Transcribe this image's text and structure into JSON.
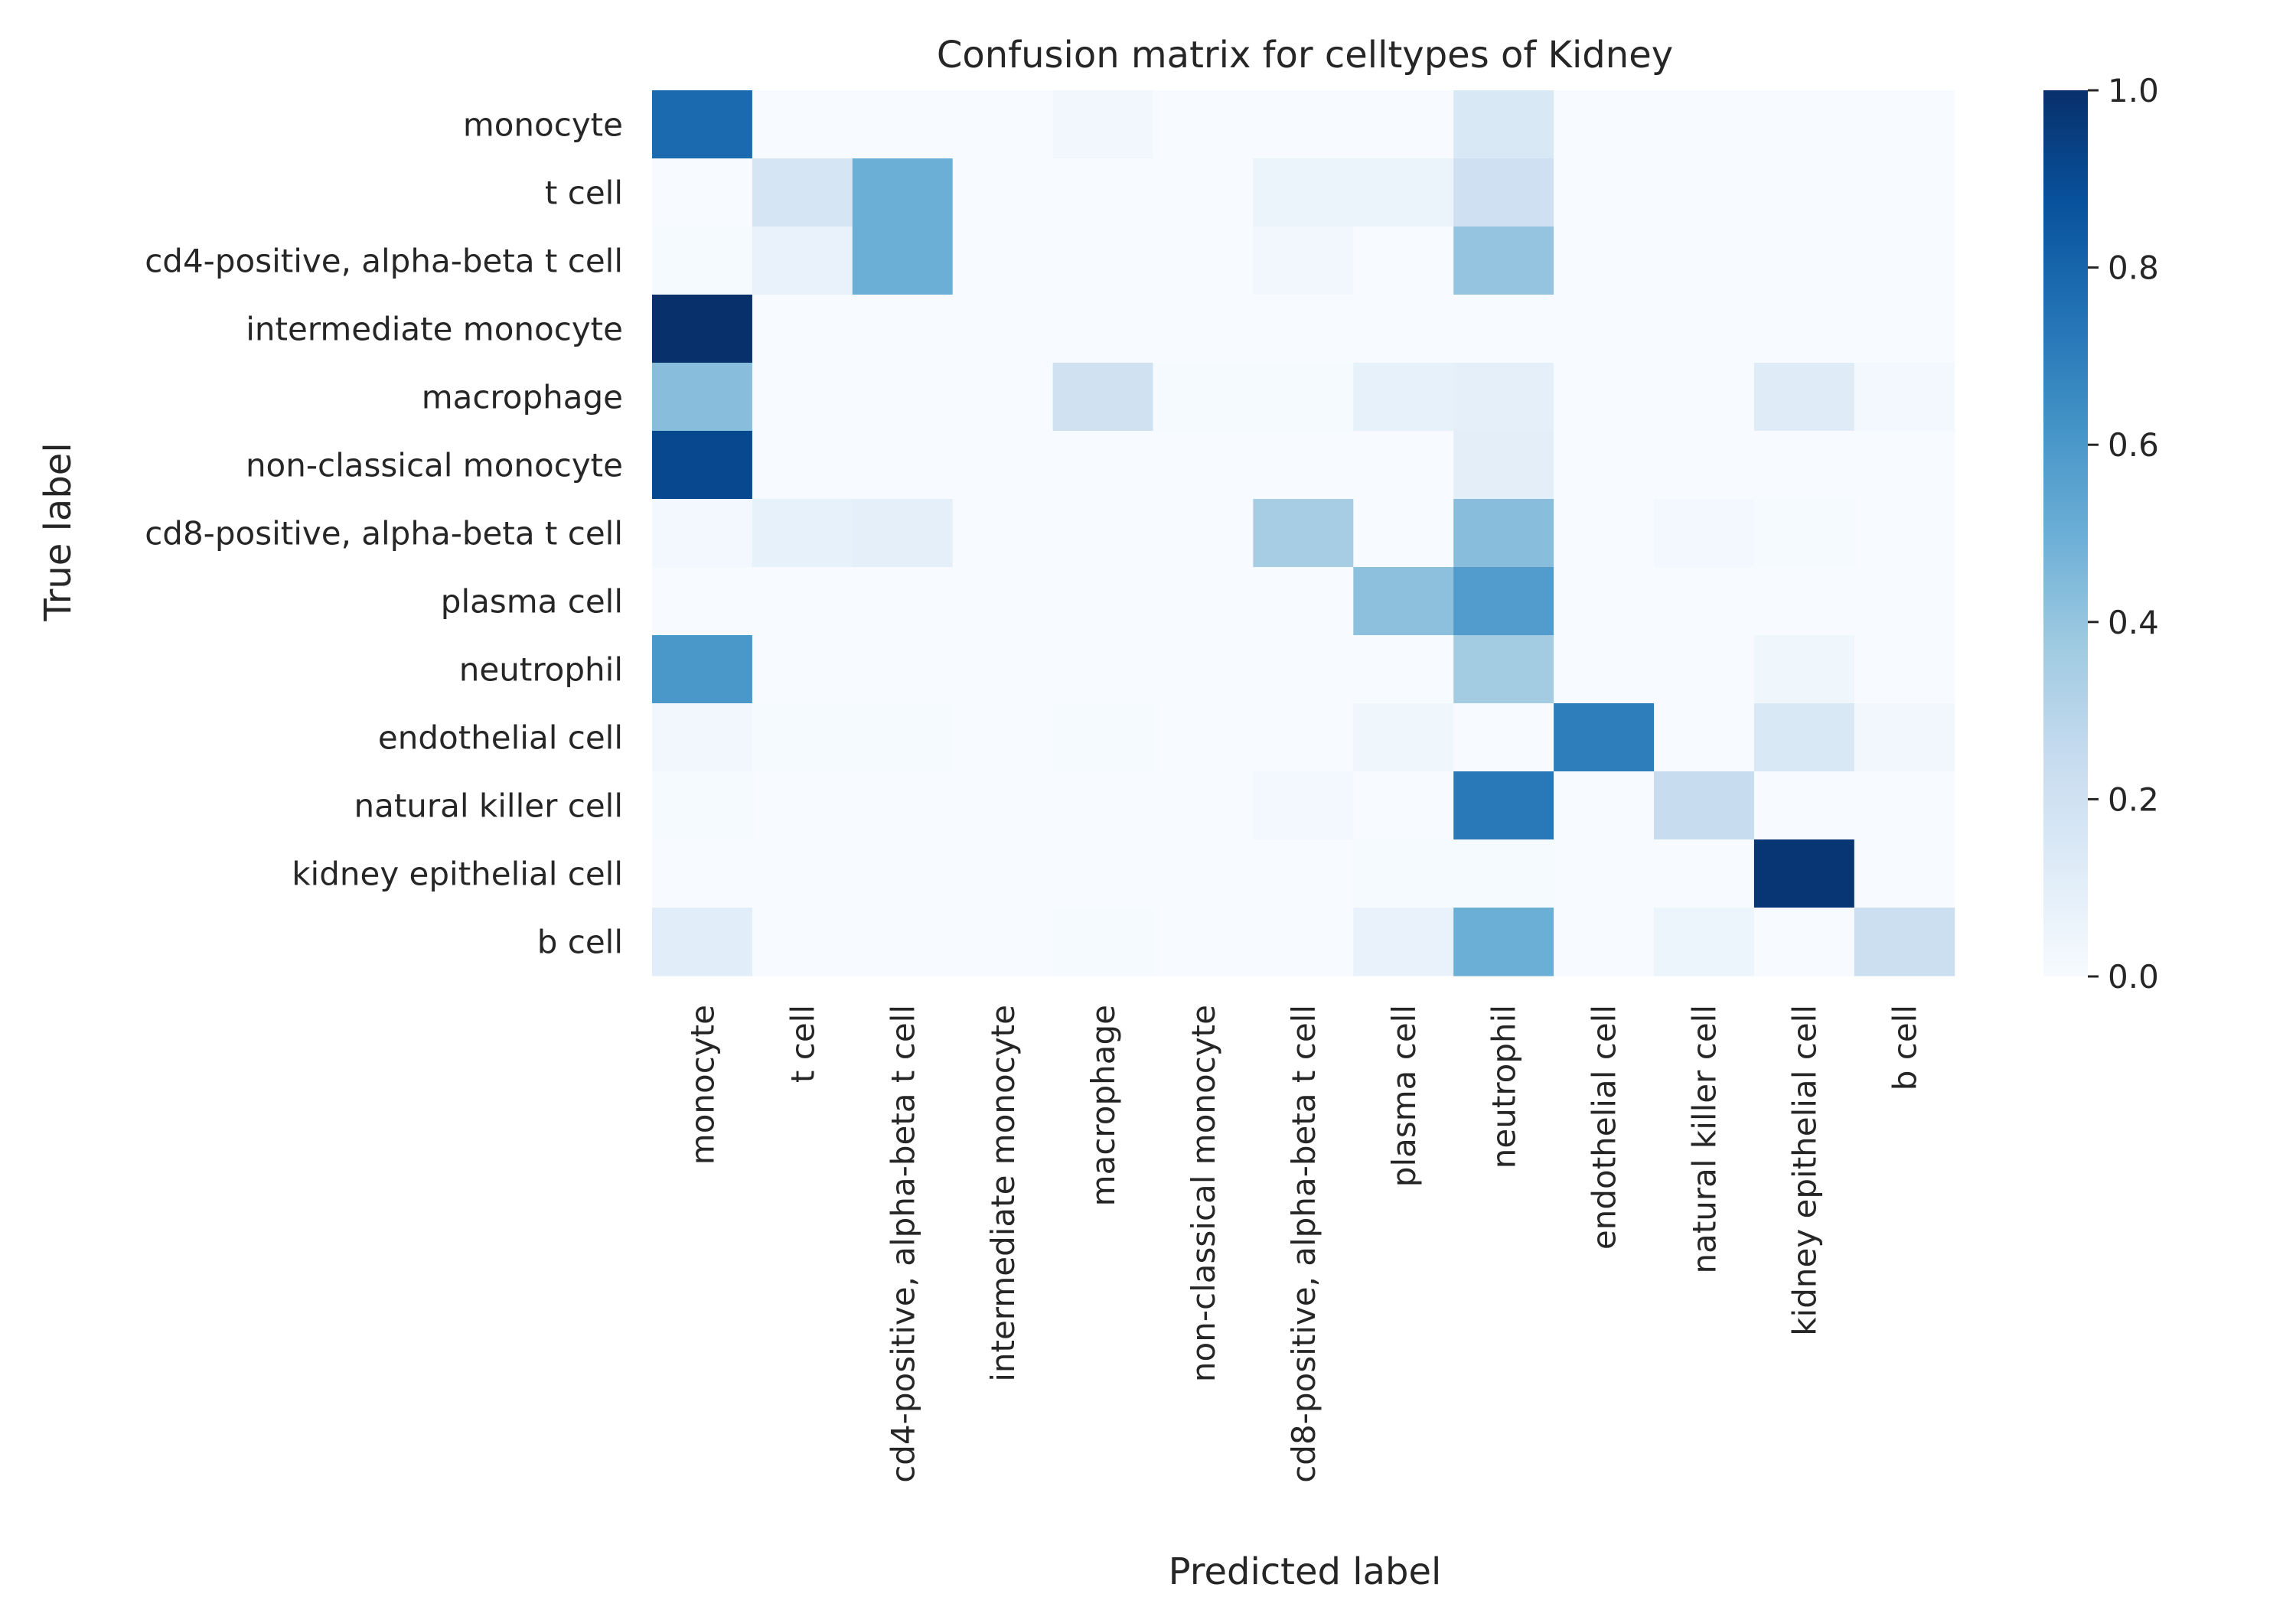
{
  "chart_data": {
    "type": "heatmap",
    "title": "Confusion matrix for celltypes of Kidney",
    "xlabel": "Predicted label",
    "ylabel": "True label",
    "row_labels": [
      "monocyte",
      "t cell",
      "cd4-positive, alpha-beta t cell",
      "intermediate monocyte",
      "macrophage",
      "non-classical monocyte",
      "cd8-positive, alpha-beta t cell",
      "plasma cell",
      "neutrophil",
      "endothelial cell",
      "natural killer cell",
      "kidney epithelial cell",
      "b cell"
    ],
    "col_labels": [
      "monocyte",
      "t cell",
      "cd4-positive, alpha-beta t cell",
      "intermediate monocyte",
      "macrophage",
      "non-classical monocyte",
      "cd8-positive, alpha-beta t cell",
      "plasma cell",
      "neutrophil",
      "endothelial cell",
      "natural killer cell",
      "kidney epithelial cell",
      "b cell"
    ],
    "values": [
      [
        0.78,
        0,
        0,
        0,
        0.03,
        0,
        0,
        0,
        0.15,
        0,
        0,
        0,
        0
      ],
      [
        0,
        0.17,
        0.5,
        0,
        0,
        0,
        0.06,
        0.06,
        0.21,
        0,
        0,
        0,
        0
      ],
      [
        0.01,
        0.07,
        0.5,
        0,
        0,
        0,
        0.03,
        0,
        0.4,
        0,
        0,
        0,
        0
      ],
      [
        1.0,
        0,
        0,
        0,
        0,
        0,
        0,
        0,
        0,
        0,
        0,
        0,
        0
      ],
      [
        0.43,
        0,
        0,
        0,
        0.2,
        0.01,
        0.01,
        0.08,
        0.09,
        0,
        0,
        0.12,
        0.02
      ],
      [
        0.91,
        0,
        0,
        0,
        0,
        0,
        0,
        0,
        0.1,
        0,
        0,
        0,
        0
      ],
      [
        0.02,
        0.08,
        0.09,
        0,
        0,
        0,
        0.35,
        0,
        0.43,
        0,
        0.02,
        0.01,
        0
      ],
      [
        0,
        0,
        0,
        0,
        0,
        0,
        0,
        0.42,
        0.58,
        0,
        0,
        0,
        0
      ],
      [
        0.6,
        0,
        0,
        0,
        0,
        0,
        0,
        0,
        0.36,
        0,
        0,
        0.04,
        0
      ],
      [
        0.03,
        0.01,
        0.01,
        0,
        0.01,
        0,
        0,
        0.04,
        0,
        0.7,
        0,
        0.15,
        0.03
      ],
      [
        0.01,
        0,
        0,
        0,
        0,
        0,
        0.02,
        0,
        0.72,
        0,
        0.24,
        0,
        0
      ],
      [
        0,
        0,
        0,
        0,
        0,
        0,
        0,
        0.01,
        0.01,
        0,
        0,
        0.98,
        0
      ],
      [
        0.11,
        0,
        0,
        0,
        0.01,
        0,
        0,
        0.07,
        0.5,
        0,
        0.05,
        0,
        0.22
      ]
    ],
    "vmin": 0,
    "vmax": 1,
    "colormap": "Blues",
    "colormap_stops": [
      "#f7fbff",
      "#deebf7",
      "#c6dbef",
      "#9ecae1",
      "#6baed6",
      "#4292c6",
      "#2171b5",
      "#08519c",
      "#08306b"
    ],
    "colorbar_ticks": [
      "0.0",
      "0.2",
      "0.4",
      "0.6",
      "0.8",
      "1.0"
    ],
    "colorbar_tick_values": [
      0,
      0.2,
      0.4,
      0.6,
      0.8,
      1.0
    ],
    "grid": false
  }
}
